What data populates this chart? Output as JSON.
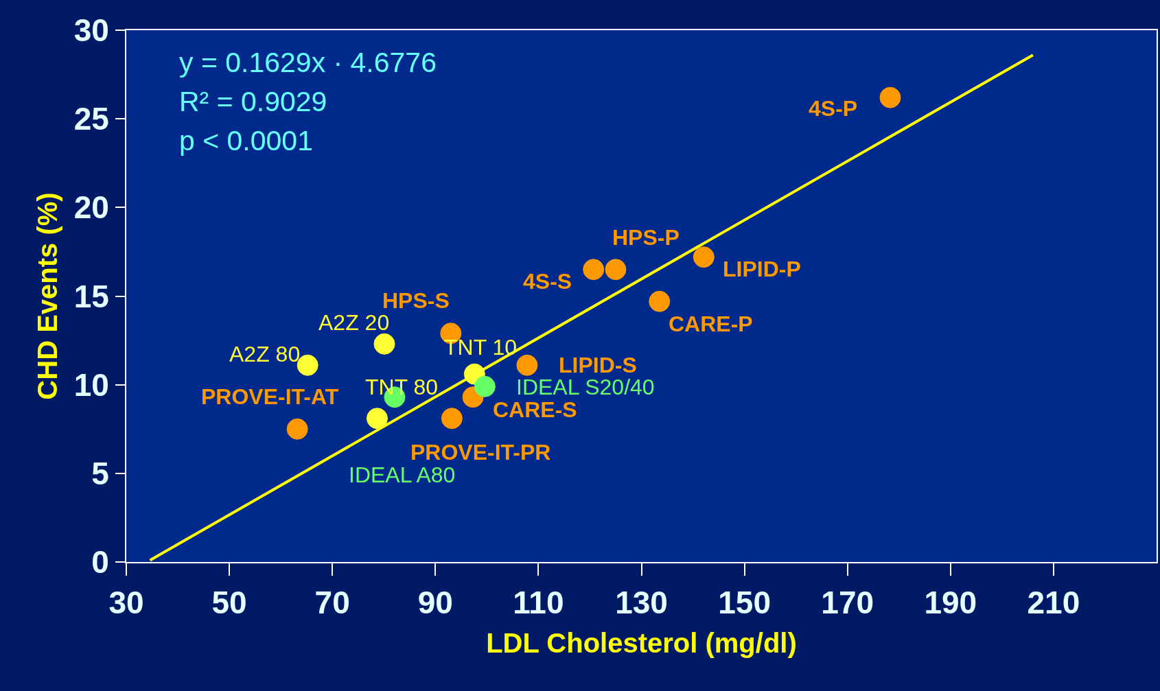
{
  "chart_data": {
    "type": "scatter",
    "xlabel": "LDL Cholesterol (mg/dl)",
    "ylabel": "CHD Events (%)",
    "xlim": [
      30,
      230
    ],
    "xticks": [
      30,
      50,
      70,
      90,
      110,
      130,
      150,
      170,
      190,
      210
    ],
    "ylim": [
      0,
      30
    ],
    "yticks": [
      0,
      5,
      10,
      15,
      20,
      25,
      30
    ],
    "grid": false,
    "series": [
      {
        "color": "#ff9900",
        "marker": "circle",
        "x": [
          178.3,
          142.1,
          125.0,
          120.7,
          133.5,
          93.0,
          107.8,
          97.3,
          93.2,
          63.2
        ],
        "values": [
          26.2,
          17.2,
          16.5,
          16.5,
          14.7,
          12.9,
          11.1,
          9.3,
          8.1,
          7.5
        ]
      },
      {
        "color": "#ffff33",
        "marker": "circle",
        "x": [
          65.2,
          80.1,
          97.6,
          78.7
        ],
        "values": [
          11.1,
          12.3,
          10.6,
          8.1
        ]
      },
      {
        "color": "#66ff66",
        "marker": "circle",
        "x": [
          82.1,
          99.6
        ],
        "values": [
          9.3,
          9.9
        ]
      },
      {
        "type": "line",
        "color": "#ffff00",
        "marker": "none",
        "x": [
          34.6,
          206.0
        ],
        "values": [
          0.1,
          28.6
        ]
      }
    ],
    "annotations": [
      "y = 0.1629x · 4.6776",
      "R² = 0.9029",
      "p < 0.0001",
      {
        "text": "4S-P",
        "x": 178.3,
        "y": 26.2
      },
      {
        "text": "LIPID-P",
        "x": 142.1,
        "y": 17.2
      },
      {
        "text": "HPS-P",
        "x": 125.0,
        "y": 16.5
      },
      {
        "text": "4S-S",
        "x": 120.7,
        "y": 16.5
      },
      {
        "text": "CARE-P",
        "x": 133.5,
        "y": 14.7
      },
      {
        "text": "HPS-S",
        "x": 93.0,
        "y": 12.9
      },
      {
        "text": "LIPID-S",
        "x": 107.8,
        "y": 11.1
      },
      {
        "text": "CARE-S",
        "x": 97.3,
        "y": 9.3
      },
      {
        "text": "PROVE-IT-PR",
        "x": 93.2,
        "y": 8.1
      },
      {
        "text": "PROVE-IT-AT",
        "x": 63.2,
        "y": 7.5
      },
      {
        "text": "A2Z 80",
        "x": 65.2,
        "y": 11.1
      },
      {
        "text": "A2Z 20",
        "x": 80.1,
        "y": 12.3
      },
      {
        "text": "TNT 10",
        "x": 97.6,
        "y": 10.6
      },
      {
        "text": "TNT 80",
        "x": 78.7,
        "y": 8.1
      },
      {
        "text": "IDEAL A80",
        "x": 82.1,
        "y": 9.3
      },
      {
        "text": "IDEAL S20/40",
        "x": 99.6,
        "y": 9.9
      }
    ]
  }
}
